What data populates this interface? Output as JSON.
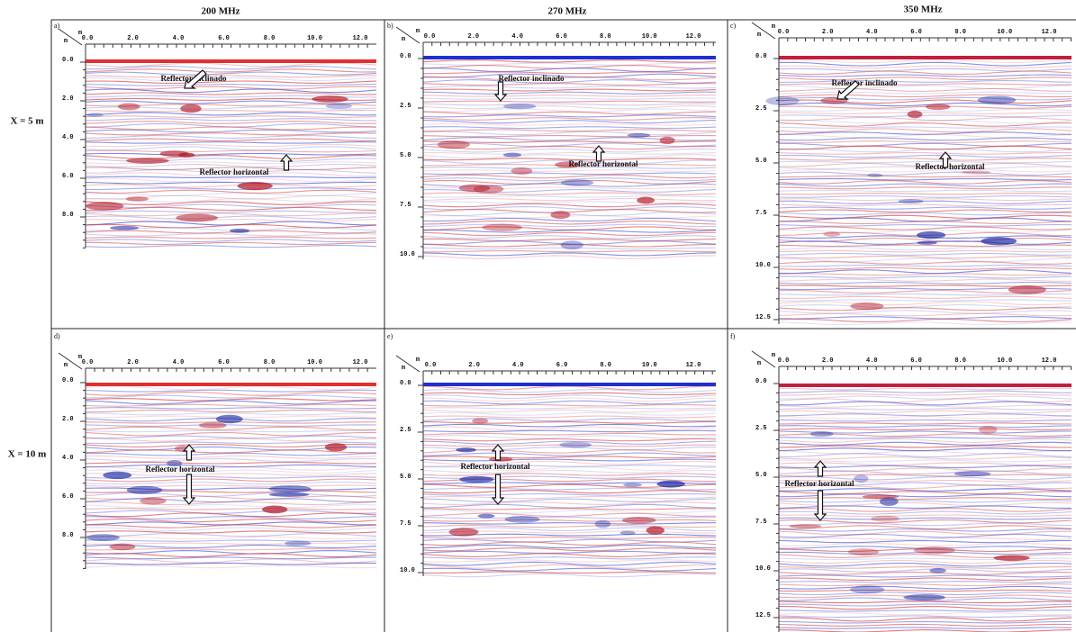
{
  "columns": [
    "200 MHz",
    "270 MHz",
    "350 MHz"
  ],
  "rows": [
    "X = 5 m",
    "X = 10 m"
  ],
  "unit": "m",
  "panels": [
    {
      "label": "a)",
      "x_ticks": [
        "0.0",
        "2.0",
        "4.0",
        "6.0",
        "8.0",
        "10.0",
        "12.0"
      ],
      "y_ticks": [
        "0.0",
        "2.0",
        "4.0",
        "6.0",
        "8.0"
      ],
      "annotations": [
        "Reflector inclinado",
        "Reflector horizontal"
      ]
    },
    {
      "label": "b)",
      "x_ticks": [
        "0.0",
        "2.0",
        "4.0",
        "6.0",
        "8.0",
        "10.0",
        "12.0"
      ],
      "y_ticks": [
        "0.0",
        "2.5",
        "5.0",
        "7.5",
        "10.0"
      ],
      "annotations": [
        "Reflector inclinado",
        "Reflector horizontal"
      ]
    },
    {
      "label": "c)",
      "x_ticks": [
        "0.0",
        "2.0",
        "4.0",
        "6.0",
        "8.0",
        "10.0",
        "12.0"
      ],
      "y_ticks": [
        "0.0",
        "2.5",
        "5.0",
        "7.5",
        "10.0",
        "12.5"
      ],
      "annotations": [
        "Reflector inclinado",
        "Reflector horizontal"
      ]
    },
    {
      "label": "d)",
      "x_ticks": [
        "0.0",
        "2.0",
        "4.0",
        "6.0",
        "8.0",
        "10.0",
        "12.0"
      ],
      "y_ticks": [
        "0.0",
        "2.0",
        "4.0",
        "6.0",
        "8.0"
      ],
      "annotations": [
        "Reflector horizontal"
      ]
    },
    {
      "label": "e)",
      "x_ticks": [
        "0.0",
        "2.0",
        "4.0",
        "6.0",
        "8.0",
        "10.0",
        "12.0"
      ],
      "y_ticks": [
        "0.0",
        "2.5",
        "5.0",
        "7.5",
        "10.0"
      ],
      "annotations": [
        "Reflector horizontal"
      ]
    },
    {
      "label": "f)",
      "x_ticks": [
        "0.0",
        "2.0",
        "4.0",
        "6.0",
        "8.0",
        "10.0",
        "12.0"
      ],
      "y_ticks": [
        "0.0",
        "2.5",
        "5.0",
        "7.5",
        "10.0",
        "12.5"
      ],
      "annotations": [
        "Reflector horizontal"
      ]
    }
  ]
}
